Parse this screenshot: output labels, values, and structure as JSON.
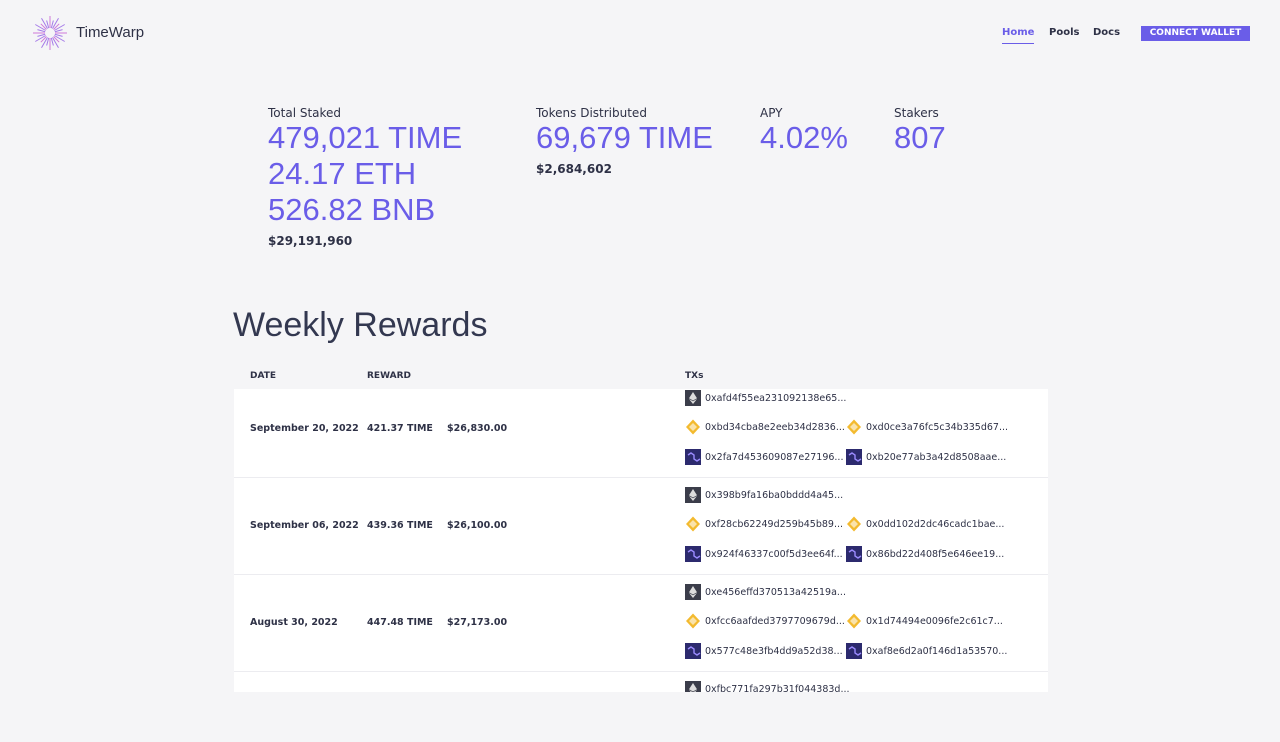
{
  "header": {
    "brand": "TimeWarp",
    "nav": [
      "Home",
      "Pools",
      "Docs"
    ],
    "button": "CONNECT WALLET"
  },
  "stats": [
    {
      "label": "Total Staked",
      "values": [
        "479,021 TIME",
        "24.17 ETH",
        "526.82 BNB"
      ],
      "usd": "$29,191,960"
    },
    {
      "label": "Tokens Distributed",
      "values": [
        "69,679 TIME"
      ],
      "usd": "$2,684,602"
    },
    {
      "label": "APY",
      "values": [
        "4.02%"
      ]
    },
    {
      "label": "Stakers",
      "values": [
        "807"
      ]
    }
  ],
  "rewards": {
    "title": "Weekly Rewards",
    "columns": [
      "DATE",
      "REWARD",
      "TXs"
    ],
    "rows": [
      {
        "date": "September 20, 2022",
        "reward": "421.37 TIME",
        "usd": "$26,830.00",
        "eth": [
          "0xafd4f55ea231092138e65..."
        ],
        "bnb": [
          "0xbd34cba8e2eeb34d2836...",
          "0xd0ce3a76fc5c34b335d67..."
        ],
        "polygon": [
          "0x2fa7d453609087e27196...",
          "0xb20e77ab3a42d8508aae..."
        ]
      },
      {
        "date": "September 06, 2022",
        "reward": "439.36 TIME",
        "usd": "$26,100.00",
        "eth": [
          "0x398b9fa16ba0bddd4a45..."
        ],
        "bnb": [
          "0xf28cb62249d259b45b89...",
          "0x0dd102d2dc46cadc1bae..."
        ],
        "polygon": [
          "0x924f46337c00f5d3ee64f...",
          "0x86bd22d408f5e646ee19..."
        ]
      },
      {
        "date": "August 30, 2022",
        "reward": "447.48 TIME",
        "usd": "$27,173.00",
        "eth": [
          "0xe456effd370513a42519a..."
        ],
        "bnb": [
          "0xfcc6aafded3797709679d...",
          "0x1d74494e0096fe2c61c7..."
        ],
        "polygon": [
          "0x577c48e3fb4dd9a52d38...",
          "0xaf8e6d2a0f146d1a53570..."
        ]
      },
      {
        "eth": [
          "0xfbc771fa297b31f044383d..."
        ]
      }
    ]
  }
}
